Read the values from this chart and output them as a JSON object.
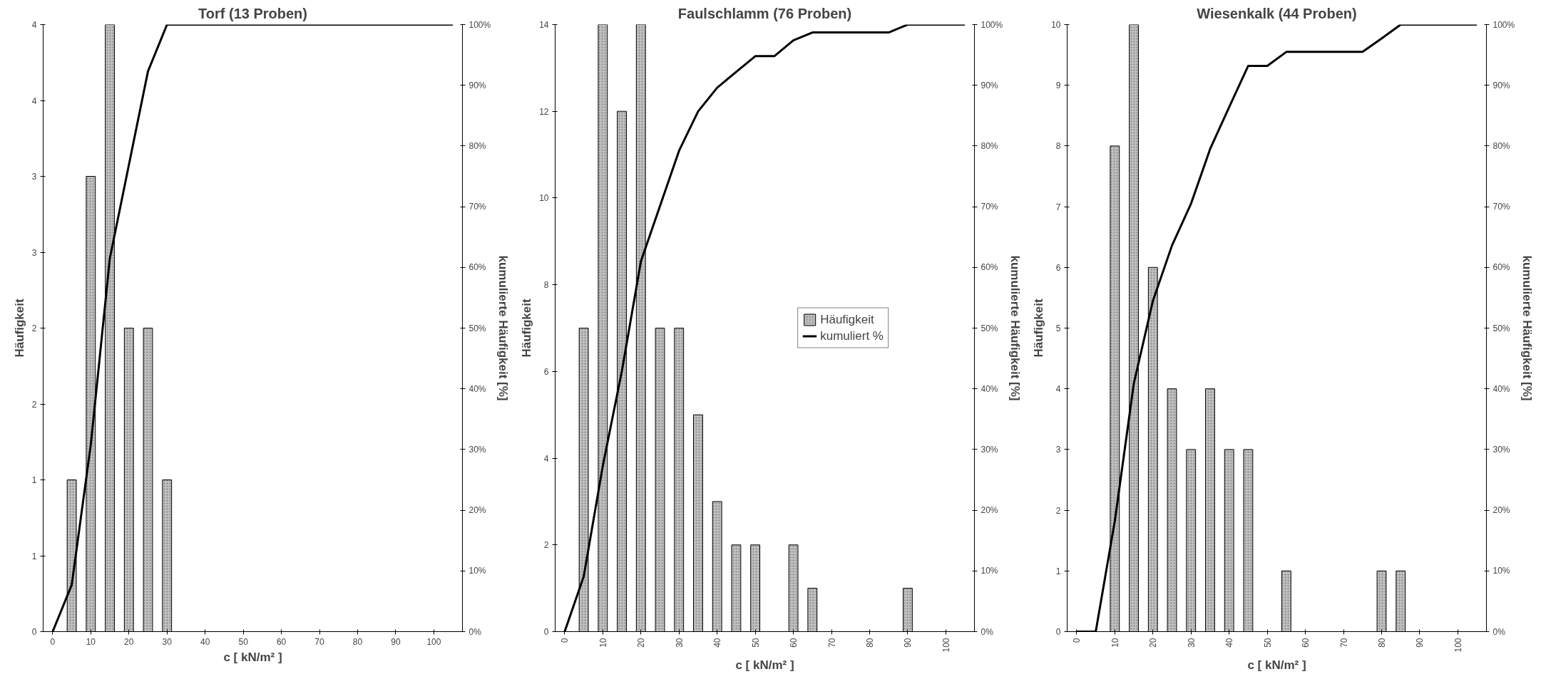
{
  "chart_data": [
    {
      "type": "bar",
      "title": "Torf (13 Proben)",
      "xlabel": "c [ kN/m² ]",
      "ylabel": "Häufigkeit",
      "y2label": "kumulierte Häufigkeit [%]",
      "grid": false,
      "x": [
        0,
        5,
        10,
        15,
        20,
        25,
        30,
        35,
        40,
        45,
        50,
        55,
        60,
        65,
        70,
        75,
        80,
        85,
        90,
        95,
        100,
        105
      ],
      "xlim": [
        -2.5,
        107.5
      ],
      "xticks": [
        0,
        10,
        20,
        30,
        40,
        50,
        60,
        70,
        80,
        90,
        100
      ],
      "ylim": [
        0,
        4
      ],
      "yticks": [
        0,
        {
          "value": 0.5,
          "label": "1"
        },
        1,
        {
          "value": 1.5,
          "label": "2"
        },
        2,
        {
          "value": 2.5,
          "label": "3"
        },
        3,
        {
          "value": 3.5,
          "label": "4"
        },
        4
      ],
      "y2lim": [
        0,
        100
      ],
      "y2ticks": [
        {
          "value": 0,
          "label": "0%"
        },
        {
          "value": 10,
          "label": "10%"
        },
        {
          "value": 20,
          "label": "20%"
        },
        {
          "value": 30,
          "label": "30%"
        },
        {
          "value": 40,
          "label": "40%"
        },
        {
          "value": 50,
          "label": "50%"
        },
        {
          "value": 60,
          "label": "60%"
        },
        {
          "value": 70,
          "label": "70%"
        },
        {
          "value": 80,
          "label": "80%"
        },
        {
          "value": 90,
          "label": "90%"
        },
        {
          "value": 100,
          "label": "100%"
        }
      ],
      "series": [
        {
          "color": "#c0c0c0",
          "values": [
            null,
            1,
            3,
            4,
            2,
            2,
            1,
            null,
            null,
            null,
            null,
            null,
            null,
            null,
            null,
            null,
            null,
            null,
            null,
            null,
            null,
            null
          ]
        },
        {
          "type": "line",
          "axis": "y2",
          "color": "#000000",
          "values": [
            0,
            7.7,
            30.8,
            61.5,
            76.9,
            92.3,
            100,
            100,
            100,
            100,
            100,
            100,
            100,
            100,
            100,
            100,
            100,
            100,
            100,
            100,
            100,
            100
          ]
        }
      ]
    },
    {
      "type": "bar",
      "title": "Faulschlamm (76 Proben)",
      "xlabel": "c [ kN/m² ]",
      "ylabel": "Häufigkeit",
      "y2label": "kumulierte Häufigkeit [%]",
      "grid": false,
      "legend": "right",
      "x": [
        0,
        5,
        10,
        15,
        20,
        25,
        30,
        35,
        40,
        45,
        50,
        55,
        60,
        65,
        70,
        75,
        80,
        85,
        90,
        95,
        100,
        105
      ],
      "xlim": [
        -2.5,
        107.5
      ],
      "xticks": [
        0,
        10,
        20,
        30,
        40,
        50,
        60,
        70,
        80,
        90,
        100
      ],
      "ylim": [
        0,
        14
      ],
      "yticks": [
        0,
        2,
        4,
        6,
        8,
        10,
        12,
        14
      ],
      "y2lim": [
        0,
        100
      ],
      "y2ticks": [
        {
          "value": 0,
          "label": "0%"
        },
        {
          "value": 10,
          "label": "10%"
        },
        {
          "value": 20,
          "label": "20%"
        },
        {
          "value": 30,
          "label": "30%"
        },
        {
          "value": 40,
          "label": "40%"
        },
        {
          "value": 50,
          "label": "50%"
        },
        {
          "value": 60,
          "label": "60%"
        },
        {
          "value": 70,
          "label": "70%"
        },
        {
          "value": 80,
          "label": "80%"
        },
        {
          "value": 90,
          "label": "90%"
        },
        {
          "value": 100,
          "label": "100%"
        }
      ],
      "series": [
        {
          "name": "Häufigkeit",
          "color": "#c0c0c0",
          "values": [
            null,
            7,
            14,
            12,
            14,
            7,
            7,
            5,
            3,
            2,
            2,
            null,
            2,
            1,
            null,
            null,
            null,
            null,
            1,
            null,
            null,
            null
          ]
        },
        {
          "type": "line",
          "name": "kumuliert %",
          "axis": "y2",
          "color": "#000000",
          "values": [
            0,
            9.1,
            27.3,
            42.9,
            61.0,
            70.1,
            79.2,
            85.7,
            89.6,
            92.2,
            94.8,
            94.8,
            97.4,
            98.7,
            98.7,
            98.7,
            98.7,
            98.7,
            100,
            100,
            100,
            100
          ]
        }
      ]
    },
    {
      "type": "bar",
      "title": "Wiesenkalk (44 Proben)",
      "xlabel": "c [ kN/m² ]",
      "ylabel": "Häufigkeit",
      "y2label": "kumulierte Häufigkeit [%]",
      "grid": false,
      "x": [
        0,
        5,
        10,
        15,
        20,
        25,
        30,
        35,
        40,
        45,
        50,
        55,
        60,
        65,
        70,
        75,
        80,
        85,
        90,
        95,
        100,
        105
      ],
      "xlim": [
        -2.5,
        107.5
      ],
      "xticks": [
        0,
        10,
        20,
        30,
        40,
        50,
        60,
        70,
        80,
        90,
        100
      ],
      "ylim": [
        0,
        10
      ],
      "yticks": [
        0,
        1,
        2,
        3,
        4,
        5,
        6,
        7,
        8,
        9,
        10
      ],
      "y2lim": [
        0,
        100
      ],
      "y2ticks": [
        {
          "value": 0,
          "label": "0%"
        },
        {
          "value": 10,
          "label": "10%"
        },
        {
          "value": 20,
          "label": "20%"
        },
        {
          "value": 30,
          "label": "30%"
        },
        {
          "value": 40,
          "label": "40%"
        },
        {
          "value": 50,
          "label": "50%"
        },
        {
          "value": 60,
          "label": "60%"
        },
        {
          "value": 70,
          "label": "70%"
        },
        {
          "value": 80,
          "label": "80%"
        },
        {
          "value": 90,
          "label": "90%"
        },
        {
          "value": 100,
          "label": "100%"
        }
      ],
      "series": [
        {
          "color": "#c0c0c0",
          "values": [
            null,
            null,
            8,
            10,
            6,
            4,
            3,
            4,
            3,
            3,
            null,
            1,
            null,
            null,
            null,
            null,
            1,
            1,
            null,
            null,
            null,
            null
          ]
        },
        {
          "type": "line",
          "axis": "y2",
          "color": "#000000",
          "values": [
            0,
            0,
            18.2,
            40.9,
            54.5,
            63.6,
            70.5,
            79.5,
            86.4,
            93.2,
            93.2,
            95.5,
            95.5,
            95.5,
            95.5,
            95.5,
            97.7,
            100,
            100,
            100,
            100,
            100
          ]
        }
      ]
    }
  ]
}
